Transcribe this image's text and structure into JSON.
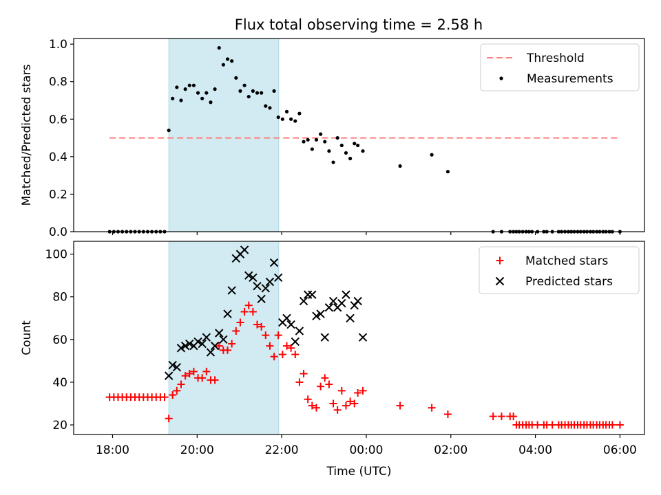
{
  "title": "Flux total observing time = 2.58 h",
  "chart_data": [
    {
      "type": "scatter",
      "ylabel": "Matched/Predicted stars",
      "xlabel": "",
      "ylim": [
        0,
        1.03
      ],
      "yticks": [
        "0.0",
        "0.2",
        "0.4",
        "0.6",
        "0.8",
        "1.0"
      ],
      "legend_position": "top-right",
      "legend": [
        "Threshold",
        "Measurements"
      ],
      "threshold": {
        "name": "Threshold",
        "value": 0.5,
        "x_start": 17.93,
        "x_end": 30.0,
        "color": "#ff7f7f",
        "style": "dashed"
      },
      "shaded_window": {
        "start": 19.33,
        "end": 21.93,
        "color": "#add8e6"
      },
      "series": [
        {
          "name": "Measurements",
          "marker": "dot",
          "color": "#000000",
          "x": [
            17.93,
            18.03,
            18.13,
            18.23,
            18.33,
            18.43,
            18.53,
            18.63,
            18.73,
            18.83,
            18.93,
            19.03,
            19.13,
            19.23,
            19.33,
            19.42,
            19.52,
            19.62,
            19.72,
            19.82,
            19.92,
            20.02,
            20.12,
            20.22,
            20.32,
            20.42,
            20.52,
            20.62,
            20.72,
            20.82,
            20.92,
            21.02,
            21.12,
            21.22,
            21.32,
            21.42,
            21.52,
            21.62,
            21.72,
            21.82,
            21.92,
            22.02,
            22.12,
            22.22,
            22.32,
            22.42,
            22.52,
            22.62,
            22.72,
            22.82,
            22.92,
            23.02,
            23.12,
            23.22,
            23.32,
            23.42,
            23.52,
            23.62,
            23.72,
            23.8,
            23.92,
            24.8,
            25.55,
            25.93,
            27.0,
            27.2,
            27.4,
            27.48,
            27.55,
            27.62,
            27.7,
            27.78,
            27.85,
            27.92,
            28.05,
            28.2,
            28.27,
            28.4,
            28.55,
            28.62,
            28.7,
            28.78,
            28.85,
            28.92,
            29.0,
            29.07,
            29.15,
            29.22,
            29.3,
            29.37,
            29.45,
            29.52,
            29.6,
            29.67,
            29.75,
            29.82,
            30.0
          ],
          "y": [
            0,
            0,
            0,
            0,
            0,
            0,
            0,
            0,
            0,
            0,
            0,
            0,
            0,
            0,
            0.54,
            0.71,
            0.77,
            0.7,
            0.76,
            0.78,
            0.78,
            0.74,
            0.71,
            0.74,
            0.69,
            0.76,
            0.98,
            0.89,
            0.92,
            0.91,
            0.82,
            0.75,
            0.78,
            0.72,
            0.75,
            0.74,
            0.74,
            0.67,
            0.66,
            0.75,
            0.61,
            0.6,
            0.64,
            0.6,
            0.59,
            0.63,
            0.48,
            0.49,
            0.44,
            0.49,
            0.52,
            0.48,
            0.43,
            0.37,
            0.5,
            0.46,
            0.42,
            0.39,
            0.47,
            0.46,
            0.43,
            0.35,
            0.41,
            0.32,
            0,
            0,
            0,
            0,
            0,
            0,
            0,
            0,
            0,
            0,
            0,
            0,
            0,
            0,
            0,
            0,
            0,
            0,
            0,
            0,
            0,
            0,
            0,
            0,
            0,
            0,
            0,
            0,
            0,
            0,
            0,
            0,
            0
          ]
        }
      ]
    },
    {
      "type": "scatter",
      "ylabel": "Count",
      "xlabel": "Time (UTC)",
      "ylim": [
        15.5,
        106
      ],
      "yticks": [
        "20",
        "40",
        "60",
        "80",
        "100"
      ],
      "xlim": [
        17.08,
        30.58
      ],
      "xticks": [
        "18:00",
        "20:00",
        "22:00",
        "00:00",
        "02:00",
        "04:00",
        "06:00"
      ],
      "legend_position": "top-right",
      "legend": [
        "Matched stars",
        "Predicted stars"
      ],
      "shaded_window": {
        "start": 19.33,
        "end": 21.93,
        "color": "#add8e6"
      },
      "series": [
        {
          "name": "Matched stars",
          "marker": "plus",
          "color": "#ff0000",
          "x": [
            17.93,
            18.03,
            18.13,
            18.23,
            18.33,
            18.43,
            18.53,
            18.63,
            18.73,
            18.83,
            18.93,
            19.03,
            19.13,
            19.23,
            19.33,
            19.42,
            19.52,
            19.62,
            19.72,
            19.82,
            19.92,
            20.02,
            20.12,
            20.22,
            20.32,
            20.42,
            20.52,
            20.62,
            20.72,
            20.82,
            20.92,
            21.02,
            21.12,
            21.22,
            21.32,
            21.42,
            21.52,
            21.62,
            21.72,
            21.82,
            21.92,
            22.02,
            22.12,
            22.22,
            22.32,
            22.42,
            22.52,
            22.62,
            22.72,
            22.82,
            22.92,
            23.02,
            23.12,
            23.22,
            23.32,
            23.42,
            23.52,
            23.62,
            23.72,
            23.8,
            23.92,
            24.8,
            25.55,
            25.93,
            27.0,
            27.2,
            27.4,
            27.48,
            27.55,
            27.62,
            27.7,
            27.78,
            27.85,
            27.92,
            28.05,
            28.2,
            28.27,
            28.4,
            28.55,
            28.62,
            28.7,
            28.78,
            28.85,
            28.92,
            29.0,
            29.07,
            29.15,
            29.22,
            29.3,
            29.37,
            29.45,
            29.52,
            29.6,
            29.67,
            29.75,
            29.82,
            30.0
          ],
          "y": [
            33,
            33,
            33,
            33,
            33,
            33,
            33,
            33,
            33,
            33,
            33,
            33,
            33,
            33,
            23,
            34,
            36,
            39,
            43,
            44,
            45,
            42,
            42,
            45,
            41,
            41,
            57,
            55,
            55,
            58,
            64,
            68,
            73,
            76,
            73,
            67,
            66,
            62,
            57,
            52,
            62,
            53,
            57,
            56,
            53,
            40,
            44,
            32,
            29,
            28,
            38,
            42,
            39,
            30,
            27,
            36,
            29,
            31,
            30,
            35,
            36,
            29,
            28,
            25,
            24,
            24,
            24,
            24,
            20,
            20,
            20,
            20,
            20,
            20,
            20,
            20,
            20,
            20,
            20,
            20,
            20,
            20,
            20,
            20,
            20,
            20,
            20,
            20,
            20,
            20,
            20,
            20,
            20,
            20,
            20,
            20,
            20
          ]
        },
        {
          "name": "Predicted stars",
          "marker": "x",
          "color": "#000000",
          "x": [
            19.33,
            19.42,
            19.52,
            19.62,
            19.72,
            19.82,
            19.92,
            20.02,
            20.12,
            20.22,
            20.32,
            20.42,
            20.52,
            20.62,
            20.72,
            20.82,
            20.92,
            21.02,
            21.12,
            21.22,
            21.32,
            21.42,
            21.52,
            21.62,
            21.72,
            21.82,
            21.92,
            22.02,
            22.12,
            22.22,
            22.32,
            22.42,
            22.52,
            22.62,
            22.72,
            22.82,
            22.92,
            23.02,
            23.12,
            23.22,
            23.32,
            23.42,
            23.52,
            23.62,
            23.72,
            23.8,
            23.92
          ],
          "y": [
            43,
            48,
            47,
            56,
            57,
            58,
            57,
            59,
            58,
            61,
            54,
            57,
            63,
            60,
            72,
            83,
            98,
            100,
            102,
            90,
            89,
            85,
            79,
            84,
            87,
            96,
            89,
            68,
            70,
            67,
            59,
            64,
            78,
            81,
            81,
            71,
            72,
            61,
            75,
            78,
            75,
            77,
            81,
            70,
            76,
            78,
            61
          ]
        }
      ]
    }
  ]
}
